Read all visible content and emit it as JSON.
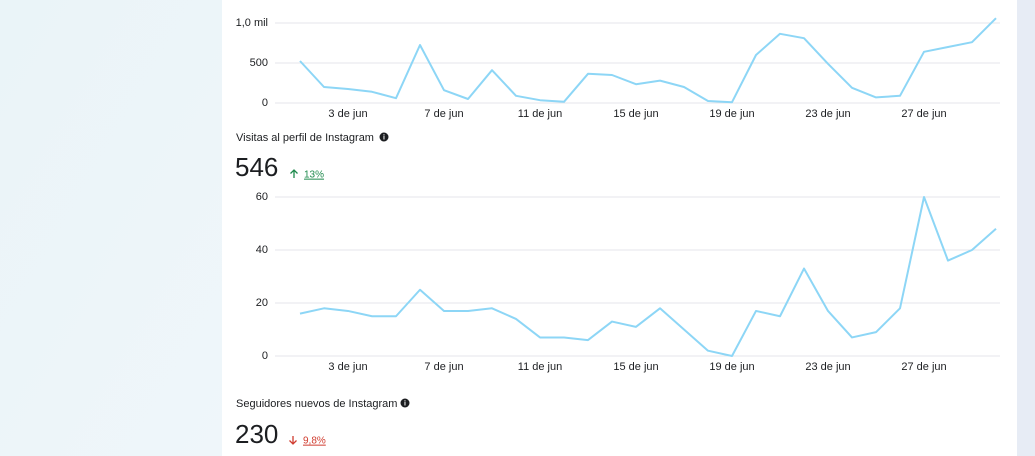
{
  "chart_data": [
    {
      "type": "line",
      "color": "#8dd6f6",
      "categories": [
        null,
        null,
        "3 de jun",
        null,
        null,
        null,
        "7 de jun",
        null,
        null,
        null,
        "11 de jun",
        null,
        null,
        null,
        "15 de jun",
        null,
        null,
        null,
        "19 de jun",
        null,
        null,
        null,
        "23 de jun",
        null,
        null,
        null,
        "27 de jun",
        null,
        null,
        null
      ],
      "values": [
        525,
        200,
        175,
        140,
        60,
        725,
        160,
        50,
        410,
        90,
        35,
        15,
        365,
        350,
        235,
        280,
        200,
        25,
        10,
        600,
        865,
        810,
        490,
        190,
        70,
        90,
        640,
        700,
        760,
        1060
      ],
      "ylim": [
        0,
        1100
      ],
      "yticks": [
        0,
        500,
        {
          "value": 1000,
          "label": "1,0 mil"
        }
      ],
      "grid": true
    },
    {
      "type": "line",
      "color": "#8dd6f6",
      "categories": [
        null,
        null,
        "3 de jun",
        null,
        null,
        null,
        "7 de jun",
        null,
        null,
        null,
        "11 de jun",
        null,
        null,
        null,
        "15 de jun",
        null,
        null,
        null,
        "19 de jun",
        null,
        null,
        null,
        "23 de jun",
        null,
        null,
        null,
        "27 de jun",
        null,
        null,
        null
      ],
      "values": [
        16,
        18,
        17,
        15,
        15,
        25,
        17,
        17,
        18,
        14,
        7,
        7,
        6,
        13,
        11,
        18,
        10,
        2,
        0,
        17,
        15,
        33,
        17,
        7,
        9,
        18,
        60,
        36,
        40,
        48
      ],
      "ylim": [
        0,
        60
      ],
      "yticks": [
        0,
        20,
        40,
        60
      ],
      "grid": true
    }
  ],
  "sections": [
    {
      "title": "Visitas al perfil de Instagram",
      "total": 546,
      "change": "13%"
    },
    {
      "title": "Seguidores nuevos de Instagram",
      "total": 230,
      "change": "9,8%"
    }
  ]
}
